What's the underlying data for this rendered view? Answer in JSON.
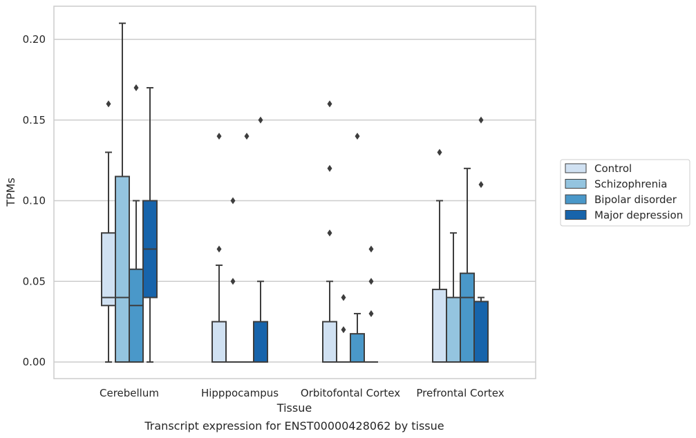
{
  "chart_data": {
    "type": "box",
    "title": "",
    "caption": "Transcript expression for ENST00000428062 by tissue",
    "xlabel": "Tissue",
    "ylabel": "TPMs",
    "ylim": [
      -0.01,
      0.22
    ],
    "yticks": [
      0.0,
      0.05,
      0.1,
      0.15,
      0.2
    ],
    "ytick_labels": [
      "0.00",
      "0.05",
      "0.10",
      "0.15",
      "0.20"
    ],
    "grid": "horizontal",
    "legend_position": "right",
    "categories": [
      "Cerebellum",
      "Hipppocampus",
      "Orbitofontal Cortex",
      "Prefrontal Cortex"
    ],
    "series": [
      {
        "name": "Control",
        "color": "#d0e1f2",
        "boxes": [
          {
            "whisker_low": 0.0,
            "q1": 0.035,
            "median": 0.04,
            "q3": 0.08,
            "whisker_high": 0.13,
            "outliers": [
              0.16
            ]
          },
          {
            "whisker_low": 0.0,
            "q1": 0.0,
            "median": 0.0,
            "q3": 0.025,
            "whisker_high": 0.06,
            "outliers": [
              0.07,
              0.14
            ]
          },
          {
            "whisker_low": 0.0,
            "q1": 0.0,
            "median": 0.0,
            "q3": 0.025,
            "whisker_high": 0.05,
            "outliers": [
              0.08,
              0.12,
              0.16
            ]
          },
          {
            "whisker_low": 0.0,
            "q1": 0.0,
            "median": 0.0,
            "q3": 0.045,
            "whisker_high": 0.1,
            "outliers": [
              0.13
            ]
          }
        ]
      },
      {
        "name": "Schizophrenia",
        "color": "#94c4df",
        "boxes": [
          {
            "whisker_low": 0.0,
            "q1": 0.0,
            "median": 0.04,
            "q3": 0.115,
            "whisker_high": 0.21,
            "outliers": []
          },
          {
            "whisker_low": 0.0,
            "q1": 0.0,
            "median": 0.0,
            "q3": 0.0,
            "whisker_high": 0.0,
            "outliers": [
              0.05,
              0.1
            ]
          },
          {
            "whisker_low": 0.0,
            "q1": 0.0,
            "median": 0.0,
            "q3": 0.0,
            "whisker_high": 0.0,
            "outliers": [
              0.02,
              0.04
            ]
          },
          {
            "whisker_low": 0.0,
            "q1": 0.0,
            "median": 0.0,
            "q3": 0.04,
            "whisker_high": 0.08,
            "outliers": []
          }
        ]
      },
      {
        "name": "Bipolar disorder",
        "color": "#4a98c9",
        "boxes": [
          {
            "whisker_low": 0.0,
            "q1": 0.0,
            "median": 0.035,
            "q3": 0.0575,
            "whisker_high": 0.1,
            "outliers": [
              0.17
            ]
          },
          {
            "whisker_low": 0.0,
            "q1": 0.0,
            "median": 0.0,
            "q3": 0.0,
            "whisker_high": 0.0,
            "outliers": [
              0.14
            ]
          },
          {
            "whisker_low": 0.0,
            "q1": 0.0,
            "median": 0.0,
            "q3": 0.0175,
            "whisker_high": 0.03,
            "outliers": [
              0.14
            ]
          },
          {
            "whisker_low": 0.0,
            "q1": 0.0,
            "median": 0.04,
            "q3": 0.055,
            "whisker_high": 0.12,
            "outliers": []
          }
        ]
      },
      {
        "name": "Major depression",
        "color": "#1764ab",
        "boxes": [
          {
            "whisker_low": 0.0,
            "q1": 0.04,
            "median": 0.07,
            "q3": 0.1,
            "whisker_high": 0.17,
            "outliers": []
          },
          {
            "whisker_low": 0.0,
            "q1": 0.0,
            "median": 0.0,
            "q3": 0.025,
            "whisker_high": 0.05,
            "outliers": [
              0.15
            ]
          },
          {
            "whisker_low": 0.0,
            "q1": 0.0,
            "median": 0.0,
            "q3": 0.0,
            "whisker_high": 0.0,
            "outliers": [
              0.03,
              0.05,
              0.07
            ]
          },
          {
            "whisker_low": 0.0,
            "q1": 0.0,
            "median": 0.0,
            "q3": 0.0375,
            "whisker_high": 0.04,
            "outliers": [
              0.11,
              0.15
            ]
          }
        ]
      }
    ]
  },
  "colors": {
    "grid": "#cccccc",
    "frame": "#cccccc",
    "stroke": "#3d3d3d"
  }
}
